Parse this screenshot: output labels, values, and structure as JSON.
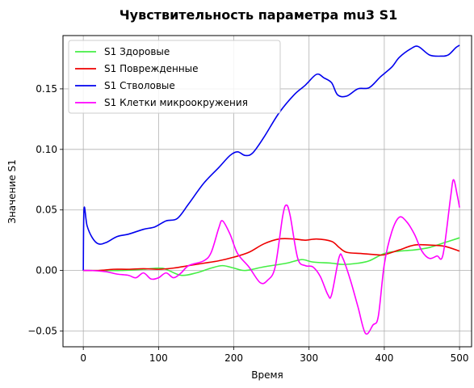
{
  "chart_data": {
    "type": "line",
    "title": "Чувствительность параметра mu3 S1",
    "xlabel": "Время",
    "ylabel": "Значение S1",
    "xlim": [
      -27,
      516
    ],
    "ylim": [
      -0.063,
      0.194
    ],
    "xticks": [
      0,
      100,
      200,
      300,
      400,
      500
    ],
    "xtick_labels": [
      "0",
      "100",
      "200",
      "300",
      "400",
      "500"
    ],
    "yticks": [
      -0.05,
      0.0,
      0.05,
      0.1,
      0.15
    ],
    "ytick_labels": [
      "−0.05",
      "0.00",
      "0.05",
      "0.10",
      "0.15"
    ],
    "grid": true,
    "legend_position": "top-left",
    "series": [
      {
        "name": "S1 Здоровые",
        "color": "#44ee44",
        "points": [
          [
            0,
            0
          ],
          [
            20,
            0
          ],
          [
            50,
            0
          ],
          [
            80,
            0.001
          ],
          [
            100,
            0.002
          ],
          [
            110,
            0.001
          ],
          [
            130,
            -0.004
          ],
          [
            150,
            -0.002
          ],
          [
            170,
            0.002
          ],
          [
            185,
            0.004
          ],
          [
            200,
            0.002
          ],
          [
            215,
            0.0
          ],
          [
            240,
            0.003
          ],
          [
            270,
            0.006
          ],
          [
            290,
            0.009
          ],
          [
            305,
            0.007
          ],
          [
            330,
            0.006
          ],
          [
            345,
            0.005
          ],
          [
            365,
            0.006
          ],
          [
            380,
            0.008
          ],
          [
            400,
            0.014
          ],
          [
            420,
            0.016
          ],
          [
            440,
            0.017
          ],
          [
            460,
            0.019
          ],
          [
            480,
            0.023
          ],
          [
            500,
            0.027
          ]
        ]
      },
      {
        "name": "S1 Поврежденные",
        "color": "#ee0000",
        "points": [
          [
            0,
            0
          ],
          [
            20,
            0
          ],
          [
            40,
            0.001
          ],
          [
            60,
            0.001
          ],
          [
            80,
            0.0015
          ],
          [
            100,
            0.001
          ],
          [
            120,
            0.002
          ],
          [
            140,
            0.004
          ],
          [
            160,
            0.006
          ],
          [
            180,
            0.008
          ],
          [
            200,
            0.011
          ],
          [
            220,
            0.015
          ],
          [
            240,
            0.022
          ],
          [
            260,
            0.026
          ],
          [
            280,
            0.026
          ],
          [
            295,
            0.025
          ],
          [
            310,
            0.026
          ],
          [
            330,
            0.024
          ],
          [
            340,
            0.019
          ],
          [
            350,
            0.015
          ],
          [
            370,
            0.014
          ],
          [
            390,
            0.013
          ],
          [
            400,
            0.013
          ],
          [
            420,
            0.017
          ],
          [
            440,
            0.021
          ],
          [
            460,
            0.021
          ],
          [
            480,
            0.02
          ],
          [
            500,
            0.016
          ]
        ]
      },
      {
        "name": "S1 Стволовые",
        "color": "#0000ee",
        "points": [
          [
            0,
            0
          ],
          [
            1,
            0.051
          ],
          [
            5,
            0.037
          ],
          [
            12,
            0.027
          ],
          [
            20,
            0.022
          ],
          [
            30,
            0.023
          ],
          [
            45,
            0.028
          ],
          [
            60,
            0.03
          ],
          [
            80,
            0.034
          ],
          [
            95,
            0.036
          ],
          [
            110,
            0.041
          ],
          [
            125,
            0.043
          ],
          [
            140,
            0.055
          ],
          [
            160,
            0.072
          ],
          [
            180,
            0.085
          ],
          [
            195,
            0.095
          ],
          [
            205,
            0.098
          ],
          [
            215,
            0.095
          ],
          [
            225,
            0.097
          ],
          [
            240,
            0.11
          ],
          [
            260,
            0.13
          ],
          [
            280,
            0.145
          ],
          [
            295,
            0.153
          ],
          [
            310,
            0.162
          ],
          [
            320,
            0.159
          ],
          [
            330,
            0.155
          ],
          [
            338,
            0.145
          ],
          [
            350,
            0.144
          ],
          [
            365,
            0.15
          ],
          [
            380,
            0.151
          ],
          [
            395,
            0.16
          ],
          [
            410,
            0.168
          ],
          [
            420,
            0.176
          ],
          [
            435,
            0.183
          ],
          [
            445,
            0.185
          ],
          [
            460,
            0.178
          ],
          [
            475,
            0.177
          ],
          [
            485,
            0.178
          ],
          [
            495,
            0.184
          ],
          [
            500,
            0.186
          ]
        ]
      },
      {
        "name": "S1 Клетки микроокружения",
        "color": "#ff00ff",
        "points": [
          [
            0,
            0
          ],
          [
            10,
            0
          ],
          [
            30,
            -0.001
          ],
          [
            45,
            -0.003
          ],
          [
            60,
            -0.004
          ],
          [
            70,
            -0.006
          ],
          [
            80,
            -0.002
          ],
          [
            90,
            -0.007
          ],
          [
            100,
            -0.006
          ],
          [
            110,
            -0.002
          ],
          [
            120,
            -0.006
          ],
          [
            130,
            -0.002
          ],
          [
            140,
            0.004
          ],
          [
            160,
            0.008
          ],
          [
            170,
            0.015
          ],
          [
            180,
            0.035
          ],
          [
            185,
            0.041
          ],
          [
            195,
            0.03
          ],
          [
            205,
            0.014
          ],
          [
            220,
            0.003
          ],
          [
            235,
            -0.01
          ],
          [
            245,
            -0.008
          ],
          [
            255,
            0.003
          ],
          [
            265,
            0.045
          ],
          [
            270,
            0.054
          ],
          [
            275,
            0.045
          ],
          [
            285,
            0.01
          ],
          [
            295,
            0.004
          ],
          [
            305,
            0.003
          ],
          [
            315,
            -0.005
          ],
          [
            325,
            -0.02
          ],
          [
            330,
            -0.02
          ],
          [
            340,
            0.011
          ],
          [
            345,
            0.01
          ],
          [
            355,
            -0.008
          ],
          [
            365,
            -0.03
          ],
          [
            375,
            -0.052
          ],
          [
            385,
            -0.045
          ],
          [
            392,
            -0.038
          ],
          [
            400,
            0.005
          ],
          [
            410,
            0.032
          ],
          [
            420,
            0.044
          ],
          [
            430,
            0.04
          ],
          [
            440,
            0.03
          ],
          [
            450,
            0.016
          ],
          [
            460,
            0.01
          ],
          [
            470,
            0.012
          ],
          [
            478,
            0.013
          ],
          [
            488,
            0.06
          ],
          [
            492,
            0.075
          ],
          [
            497,
            0.062
          ],
          [
            500,
            0.052
          ]
        ]
      }
    ]
  }
}
